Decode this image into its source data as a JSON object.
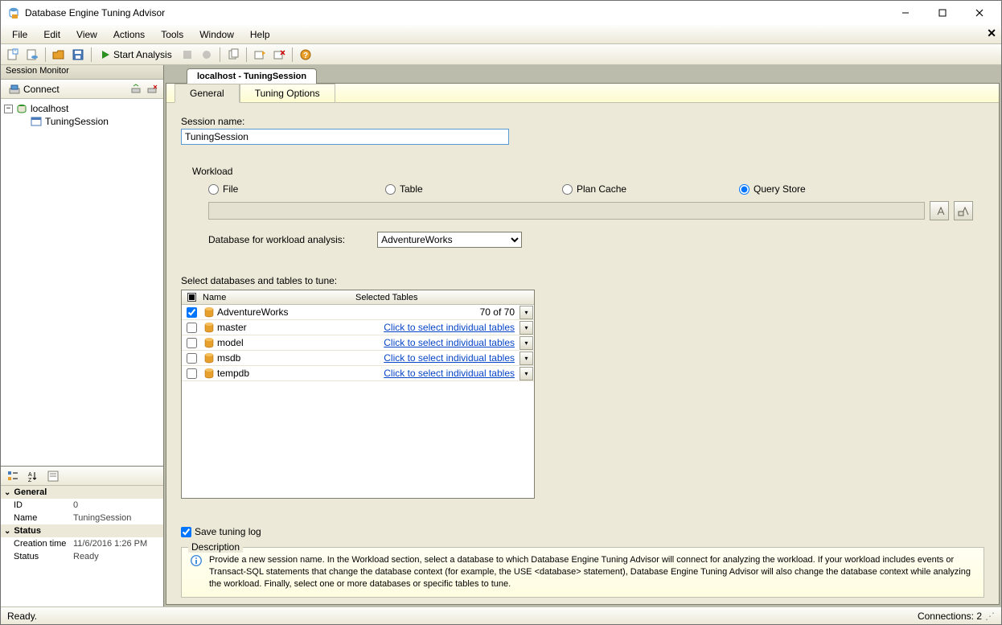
{
  "app": {
    "title": "Database Engine Tuning Advisor"
  },
  "menubar": [
    "File",
    "Edit",
    "View",
    "Actions",
    "Tools",
    "Window",
    "Help"
  ],
  "toolbar": {
    "start_analysis": "Start Analysis"
  },
  "session_monitor": {
    "title": "Session Monitor",
    "connect_label": "Connect",
    "tree": {
      "server": "localhost",
      "session": "TuningSession"
    }
  },
  "properties": {
    "general": {
      "category": "General",
      "id_label": "ID",
      "id_value": "0",
      "name_label": "Name",
      "name_value": "TuningSession"
    },
    "status": {
      "category": "Status",
      "creation_label": "Creation time",
      "creation_value": "11/6/2016 1:26 PM",
      "status_label": "Status",
      "status_value": "Ready"
    }
  },
  "document": {
    "tab_title": "localhost - TuningSession",
    "inner_tabs": [
      "General",
      "Tuning Options"
    ],
    "active_tab": 0
  },
  "form": {
    "session_name_label": "Session name:",
    "session_name_value": "TuningSession",
    "workload_label": "Workload",
    "radios": {
      "file": "File",
      "table": "Table",
      "plan_cache": "Plan Cache",
      "query_store": "Query Store",
      "selected": "query_store"
    },
    "db_analysis_label": "Database for workload analysis:",
    "db_analysis_value": "AdventureWorks",
    "tables_label": "Select databases and tables to tune:",
    "tables_header": {
      "name": "Name",
      "selected": "Selected Tables"
    },
    "db_rows": [
      {
        "checked": true,
        "name": "AdventureWorks",
        "selected_text": "70 of 70",
        "is_link": false
      },
      {
        "checked": false,
        "name": "master",
        "selected_text": "Click to select individual tables",
        "is_link": true
      },
      {
        "checked": false,
        "name": "model",
        "selected_text": "Click to select individual tables",
        "is_link": true
      },
      {
        "checked": false,
        "name": "msdb",
        "selected_text": "Click to select individual tables",
        "is_link": true
      },
      {
        "checked": false,
        "name": "tempdb",
        "selected_text": "Click to select individual tables",
        "is_link": true
      }
    ],
    "save_log_label": "Save tuning log",
    "save_log_checked": true,
    "description_label": "Description",
    "description_text": "Provide a new session name. In the Workload section, select a database to which Database Engine Tuning Advisor will connect for analyzing the workload. If your workload includes events or Transact-SQL statements that change the database context (for example, the USE <database> statement), Database Engine Tuning Advisor will also change the database context while analyzing the workload. Finally, select one or more databases or specific tables to tune."
  },
  "statusbar": {
    "ready": "Ready.",
    "connections": "Connections: 2"
  },
  "colors": {
    "db_icon": "#e8a02c",
    "link": "#0645c8"
  }
}
